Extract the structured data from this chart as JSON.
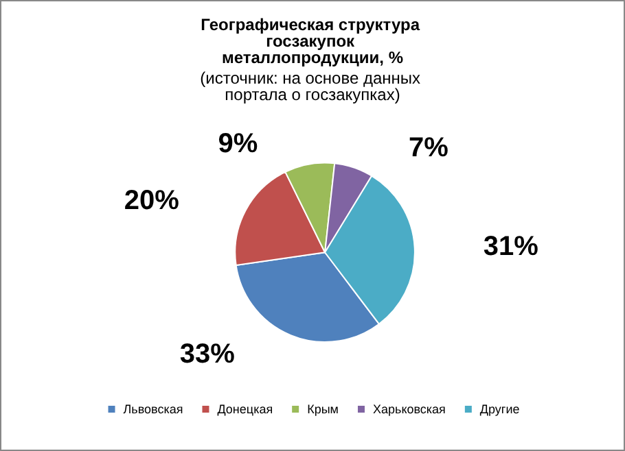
{
  "chart_data": {
    "type": "pie",
    "title": "Географическая структура госзакупок металлопродукции, %",
    "subtitle": "(источник: на основе данных портала о госзакупках)",
    "categories": [
      "Львовская",
      "Донецкая",
      "Крым",
      "Харьковская",
      "Другие"
    ],
    "values": [
      33,
      20,
      9,
      7,
      31
    ],
    "colors": [
      "#4f81bd",
      "#c0504d",
      "#9bbb59",
      "#8064a2",
      "#4bacc6"
    ],
    "value_labels": [
      "33%",
      "20%",
      "9%",
      "7%",
      "31%"
    ],
    "legend": "bottom"
  }
}
